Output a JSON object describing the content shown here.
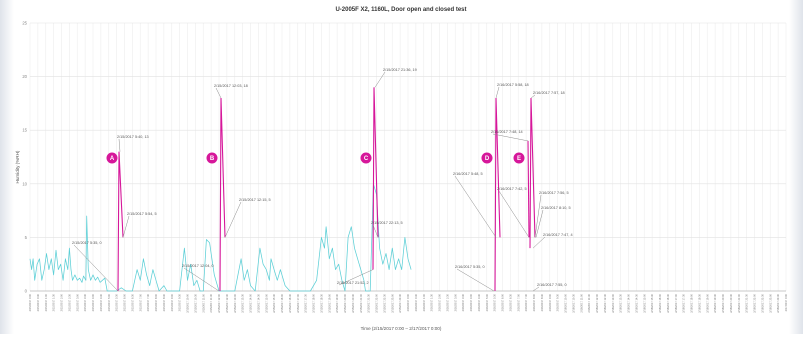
{
  "chart_data": {
    "type": "line",
    "title": "U-2005F X2, 1160L, Door open and closed test",
    "xlabel": "Time (2/15/2017 0:00 – 2/17/2017 0:00)",
    "ylabel": "Humidity (%RH)",
    "ylim": [
      0,
      25
    ],
    "yticks": [
      0,
      5,
      10,
      15,
      20,
      25
    ],
    "xlim_hours": [
      0,
      48
    ],
    "grid": true,
    "colors": {
      "humidity": "#5ccfd6",
      "event": "#d6179a",
      "annotation": "#8c8c8c"
    },
    "x_tick_labels": [
      "2/15/2017 0:00",
      "2/15/2017 0:30",
      "2/15/2017 1:00",
      "2/15/2017 1:30",
      "2/15/2017 2:00",
      "2/15/2017 2:30",
      "2/15/2017 3:00",
      "2/15/2017 3:30",
      "2/15/2017 4:00",
      "2/15/2017 4:30",
      "2/15/2017 5:00",
      "2/15/2017 5:30",
      "2/15/2017 6:00",
      "2/15/2017 6:30",
      "2/15/2017 7:00",
      "2/15/2017 7:30",
      "2/15/2017 8:00",
      "2/15/2017 8:30",
      "2/15/2017 9:00",
      "2/15/2017 9:30",
      "2/15/2017 10:00",
      "2/15/2017 10:30",
      "2/15/2017 11:00",
      "2/15/2017 11:30",
      "2/15/2017 12:00",
      "2/15/2017 12:30",
      "2/15/2017 13:00",
      "2/15/2017 13:30",
      "2/15/2017 14:00",
      "2/15/2017 14:30",
      "2/15/2017 15:00",
      "2/15/2017 15:30",
      "2/15/2017 16:00",
      "2/15/2017 16:30",
      "2/15/2017 17:00",
      "2/15/2017 17:30",
      "2/15/2017 18:00",
      "2/15/2017 18:30",
      "2/15/2017 19:00",
      "2/15/2017 19:30",
      "2/15/2017 20:00",
      "2/15/2017 20:30",
      "2/15/2017 21:00",
      "2/15/2017 21:30",
      "2/15/2017 22:00",
      "2/15/2017 22:30",
      "2/15/2017 23:00",
      "2/15/2017 23:30",
      "2/16/2017 0:00",
      "2/16/2017 0:30",
      "2/16/2017 1:00",
      "2/16/2017 1:30",
      "2/16/2017 2:00",
      "2/16/2017 2:30",
      "2/16/2017 3:00",
      "2/16/2017 3:30",
      "2/16/2017 4:00",
      "2/16/2017 4:30",
      "2/16/2017 5:00",
      "2/16/2017 5:30",
      "2/16/2017 6:00",
      "2/16/2017 6:30",
      "2/16/2017 7:00",
      "2/16/2017 7:30",
      "2/16/2017 8:00",
      "2/16/2017 8:30",
      "2/16/2017 9:00",
      "2/16/2017 9:30",
      "2/16/2017 10:00",
      "2/16/2017 10:30",
      "2/16/2017 11:00",
      "2/16/2017 11:30",
      "2/16/2017 12:00",
      "2/16/2017 12:30",
      "2/16/2017 13:00",
      "2/16/2017 13:30",
      "2/16/2017 14:00",
      "2/16/2017 14:30",
      "2/16/2017 15:00",
      "2/16/2017 15:30",
      "2/16/2017 16:00",
      "2/16/2017 16:30",
      "2/16/2017 17:00",
      "2/16/2017 17:30",
      "2/16/2017 18:00",
      "2/16/2017 18:30",
      "2/16/2017 19:00",
      "2/16/2017 19:30",
      "2/16/2017 20:00",
      "2/16/2017 20:30",
      "2/16/2017 21:00",
      "2/16/2017 21:30",
      "2/16/2017 22:00",
      "2/16/2017 22:30",
      "2/16/2017 23:00",
      "2/16/2017 23:30",
      "2/17/2017 0:00"
    ],
    "series": [
      {
        "color": "#5ccfd6",
        "points": [
          [
            0.0,
            3
          ],
          [
            0.1,
            2
          ],
          [
            0.2,
            3
          ],
          [
            0.3,
            1
          ],
          [
            0.45,
            2.5
          ],
          [
            0.6,
            3
          ],
          [
            0.75,
            1
          ],
          [
            0.9,
            2
          ],
          [
            1.05,
            3.5
          ],
          [
            1.2,
            2
          ],
          [
            1.35,
            3
          ],
          [
            1.5,
            1.5
          ],
          [
            1.65,
            3.8
          ],
          [
            1.8,
            2
          ],
          [
            1.95,
            2.5
          ],
          [
            2.1,
            1
          ],
          [
            2.25,
            3
          ],
          [
            2.4,
            2
          ],
          [
            2.5,
            4
          ],
          [
            2.6,
            2
          ],
          [
            2.7,
            1
          ],
          [
            2.85,
            1.5
          ],
          [
            3.0,
            1
          ],
          [
            3.15,
            1.2
          ],
          [
            3.3,
            0.8
          ],
          [
            3.4,
            1.4
          ],
          [
            3.55,
            1
          ],
          [
            3.6,
            7
          ],
          [
            3.7,
            2
          ],
          [
            3.85,
            1
          ],
          [
            4.0,
            1.5
          ],
          [
            4.15,
            1
          ],
          [
            4.3,
            1.3
          ],
          [
            4.45,
            0.8
          ],
          [
            4.6,
            1
          ],
          [
            4.75,
            1.2
          ],
          [
            4.9,
            0
          ],
          [
            5.5,
            0
          ],
          [
            5.8,
            0.3
          ],
          [
            6.1,
            0
          ],
          [
            6.5,
            0
          ],
          [
            6.8,
            2
          ],
          [
            7.0,
            1
          ],
          [
            7.2,
            3
          ],
          [
            7.4,
            1.5
          ],
          [
            7.6,
            0.5
          ],
          [
            7.8,
            2
          ],
          [
            8.0,
            1
          ],
          [
            8.2,
            0
          ],
          [
            8.5,
            0.5
          ],
          [
            8.7,
            0
          ],
          [
            9.0,
            0
          ],
          [
            9.5,
            0
          ],
          [
            9.8,
            4
          ],
          [
            10.0,
            1
          ],
          [
            10.2,
            2.5
          ],
          [
            10.4,
            0.5
          ],
          [
            10.6,
            1
          ],
          [
            10.8,
            0
          ],
          [
            11.0,
            0
          ],
          [
            11.2,
            4.8
          ],
          [
            11.4,
            4.5
          ],
          [
            11.55,
            3
          ],
          [
            11.7,
            1.5
          ],
          [
            11.9,
            0.5
          ],
          [
            12.0,
            0
          ],
          [
            12.5,
            0
          ],
          [
            13.0,
            0
          ],
          [
            13.4,
            3
          ],
          [
            13.6,
            1
          ],
          [
            13.8,
            2
          ],
          [
            14.0,
            0.5
          ],
          [
            14.3,
            0
          ],
          [
            14.6,
            4
          ],
          [
            14.8,
            2.5
          ],
          [
            15.0,
            2
          ],
          [
            15.2,
            1
          ],
          [
            15.3,
            3
          ],
          [
            15.5,
            2
          ],
          [
            15.7,
            1
          ],
          [
            15.9,
            2
          ],
          [
            16.2,
            0.5
          ],
          [
            16.5,
            0
          ],
          [
            17.0,
            0
          ],
          [
            17.5,
            0
          ],
          [
            17.8,
            0
          ],
          [
            18.2,
            1
          ],
          [
            18.5,
            5
          ],
          [
            18.7,
            4
          ],
          [
            18.8,
            6
          ],
          [
            19.0,
            3
          ],
          [
            19.2,
            4
          ],
          [
            19.4,
            2
          ],
          [
            19.6,
            2.5
          ],
          [
            19.8,
            1
          ],
          [
            20.0,
            0
          ],
          [
            20.2,
            5
          ],
          [
            20.4,
            6
          ],
          [
            20.6,
            4
          ],
          [
            20.8,
            3
          ],
          [
            21.0,
            2
          ],
          [
            21.2,
            1
          ],
          [
            21.3,
            0
          ],
          [
            21.6,
            0
          ],
          [
            21.8,
            10
          ],
          [
            22.0,
            9
          ],
          [
            22.2,
            4
          ],
          [
            22.4,
            2.5
          ],
          [
            22.6,
            3.5
          ],
          [
            22.8,
            2
          ],
          [
            23.0,
            4
          ],
          [
            23.2,
            2
          ],
          [
            23.4,
            3
          ],
          [
            23.6,
            2
          ],
          [
            23.8,
            5
          ],
          [
            24.0,
            3
          ],
          [
            24.2,
            2
          ]
        ]
      }
    ],
    "labels": [
      {
        "text": "2/15/2017 5:40, 13"
      },
      {
        "text": "2/15/2017 5:54, 5"
      },
      {
        "text": "2/15/2017 5:35, 0"
      },
      {
        "text": "2/15/2017 12:03, 18"
      },
      {
        "text": "2/15/2017 12:15, 5"
      },
      {
        "text": "2/15/2017 12:04, 0"
      },
      {
        "text": "2/15/2017 21:36, 19"
      },
      {
        "text": "2/15/2017 22:13, 5"
      },
      {
        "text": "2/15/2017 21:52, 2"
      },
      {
        "text": "2/16/2017 5:58, 18"
      },
      {
        "text": "2/16/2017 5:48, 5"
      },
      {
        "text": "2/16/2017 5:35, 0"
      },
      {
        "text": "2/16/2017 7:48, 14"
      },
      {
        "text": "2/16/2017 7:57, 18"
      },
      {
        "text": "2/16/2017 7:42, 5"
      },
      {
        "text": "2/16/2017 7:56, 5"
      },
      {
        "text": "2/16/2017 8:10, 5"
      },
      {
        "text": "2/16/2017 7:47, 4"
      },
      {
        "text": "2/16/2017 7:55, 0"
      }
    ],
    "markers": [
      {
        "letter": "A"
      },
      {
        "letter": "B"
      },
      {
        "letter": "C"
      },
      {
        "letter": "D"
      },
      {
        "letter": "E"
      }
    ]
  }
}
